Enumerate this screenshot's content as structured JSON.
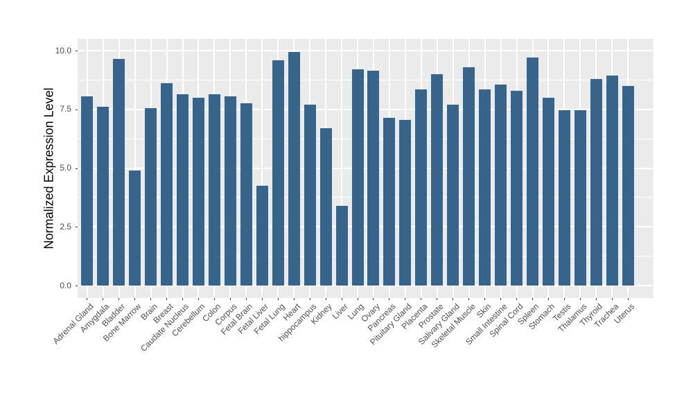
{
  "chart_data": {
    "type": "bar",
    "title": "",
    "xlabel": "",
    "ylabel": "Normalized Expression Level",
    "categories": [
      "Adrenal Gland",
      "Amygdala",
      "Bladder",
      "Bone Marrow",
      "Brain",
      "Breast",
      "Caudate Nucleus",
      "Cerebellum",
      "Colon",
      "Corpus",
      "Fetal Brain",
      "Fetal Liver",
      "Fetal Lung",
      "Heart",
      "hippocampus",
      "Kidney",
      "Liver",
      "Lung",
      "Ovary",
      "Pancreas",
      "Pituitary Gland",
      "Placenta",
      "Prostate",
      "Salivary Gland",
      "Skeletal Muscle",
      "Skin",
      "Small Intestine",
      "Spinal Cord",
      "Spleen",
      "Stomach",
      "Testis",
      "Thalamus",
      "Thyroid",
      "Trachea",
      "Uterus"
    ],
    "values": [
      8.05,
      7.6,
      9.65,
      4.9,
      7.55,
      8.6,
      8.15,
      8.0,
      8.15,
      8.05,
      7.75,
      4.25,
      9.6,
      9.95,
      7.7,
      6.7,
      3.4,
      9.2,
      9.15,
      7.15,
      7.05,
      8.35,
      9.0,
      7.7,
      9.3,
      8.35,
      8.55,
      8.3,
      9.7,
      8.0,
      7.45,
      7.45,
      8.8,
      8.95,
      8.5
    ],
    "y_ticks": [
      0.0,
      2.5,
      5.0,
      7.5,
      10.0
    ],
    "ylim": [
      0,
      10
    ],
    "grid": "on",
    "legend": "none",
    "colors": {
      "bar": "#36648B",
      "panel_bg": "#EBEBEB",
      "grid": "#FFFFFF",
      "tick_text": "#4D4D4D",
      "axis_title": "#000000",
      "tick_mark": "#333333"
    }
  }
}
